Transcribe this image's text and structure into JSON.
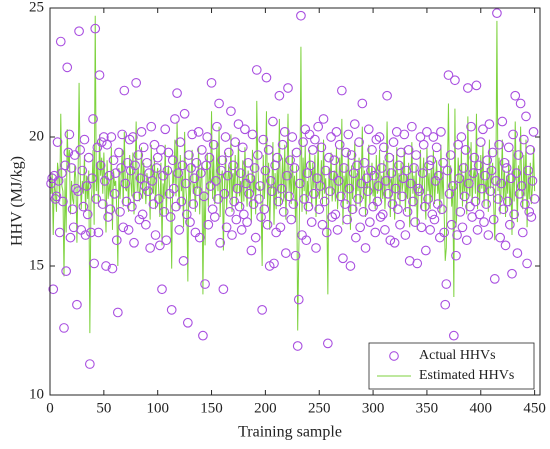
{
  "chart_data": {
    "type": "scatter-line",
    "xlabel": "Training sample",
    "ylabel": "HHV (MJ/kg)",
    "xlim": [
      0,
      455
    ],
    "ylim": [
      10,
      25
    ],
    "xticks": [
      0,
      50,
      100,
      150,
      200,
      250,
      300,
      350,
      400,
      450
    ],
    "yticks": [
      10,
      15,
      20,
      25
    ],
    "legend": "lower right",
    "x": [
      1,
      2,
      3,
      4,
      5,
      6,
      7,
      8,
      9,
      10,
      11,
      12,
      13,
      14,
      15,
      16,
      17,
      18,
      19,
      20,
      21,
      22,
      23,
      24,
      25,
      26,
      27,
      28,
      29,
      30,
      31,
      32,
      33,
      34,
      35,
      36,
      37,
      38,
      39,
      40,
      41,
      42,
      43,
      44,
      45,
      46,
      47,
      48,
      49,
      50,
      51,
      52,
      53,
      54,
      55,
      56,
      57,
      58,
      59,
      60,
      61,
      62,
      63,
      64,
      65,
      66,
      67,
      68,
      69,
      70,
      71,
      72,
      73,
      74,
      75,
      76,
      77,
      78,
      79,
      80,
      81,
      82,
      83,
      84,
      85,
      86,
      87,
      88,
      89,
      90,
      91,
      92,
      93,
      94,
      95,
      96,
      97,
      98,
      99,
      100,
      101,
      102,
      103,
      104,
      105,
      106,
      107,
      108,
      109,
      110,
      111,
      112,
      113,
      114,
      115,
      116,
      117,
      118,
      119,
      120,
      121,
      122,
      123,
      124,
      125,
      126,
      127,
      128,
      129,
      130,
      131,
      132,
      133,
      134,
      135,
      136,
      137,
      138,
      139,
      140,
      141,
      142,
      143,
      144,
      145,
      146,
      147,
      148,
      149,
      150,
      151,
      152,
      153,
      154,
      155,
      156,
      157,
      158,
      159,
      160,
      161,
      162,
      163,
      164,
      165,
      166,
      167,
      168,
      169,
      170,
      171,
      172,
      173,
      174,
      175,
      176,
      177,
      178,
      179,
      180,
      181,
      182,
      183,
      184,
      185,
      186,
      187,
      188,
      189,
      190,
      191,
      192,
      193,
      194,
      195,
      196,
      197,
      198,
      199,
      200,
      201,
      202,
      203,
      204,
      205,
      206,
      207,
      208,
      209,
      210,
      211,
      212,
      213,
      214,
      215,
      216,
      217,
      218,
      219,
      220,
      221,
      222,
      223,
      224,
      225,
      226,
      227,
      228,
      229,
      230,
      231,
      232,
      233,
      234,
      235,
      236,
      237,
      238,
      239,
      240,
      241,
      242,
      243,
      244,
      245,
      246,
      247,
      248,
      249,
      250,
      251,
      252,
      253,
      254,
      255,
      256,
      257,
      258,
      259,
      260,
      261,
      262,
      263,
      264,
      265,
      266,
      267,
      268,
      269,
      270,
      271,
      272,
      273,
      274,
      275,
      276,
      277,
      278,
      279,
      280,
      281,
      282,
      283,
      284,
      285,
      286,
      287,
      288,
      289,
      290,
      291,
      292,
      293,
      294,
      295,
      296,
      297,
      298,
      299,
      300,
      301,
      302,
      303,
      304,
      305,
      306,
      307,
      308,
      309,
      310,
      311,
      312,
      313,
      314,
      315,
      316,
      317,
      318,
      319,
      320,
      321,
      322,
      323,
      324,
      325,
      326,
      327,
      328,
      329,
      330,
      331,
      332,
      333,
      334,
      335,
      336,
      337,
      338,
      339,
      340,
      341,
      342,
      343,
      344,
      345,
      346,
      347,
      348,
      349,
      350,
      351,
      352,
      353,
      354,
      355,
      356,
      357,
      358,
      359,
      360,
      361,
      362,
      363,
      364,
      365,
      366,
      367,
      368,
      369,
      370,
      371,
      372,
      373,
      374,
      375,
      376,
      377,
      378,
      379,
      380,
      381,
      382,
      383,
      384,
      385,
      386,
      387,
      388,
      389,
      390,
      391,
      392,
      393,
      394,
      395,
      396,
      397,
      398,
      399,
      400,
      401,
      402,
      403,
      404,
      405,
      406,
      407,
      408,
      409,
      410,
      411,
      412,
      413,
      414,
      415,
      416,
      417,
      418,
      419,
      420,
      421,
      422,
      423,
      424,
      425,
      426,
      427,
      428,
      429,
      430,
      431,
      432,
      433,
      434,
      435,
      436,
      437,
      438,
      439,
      440,
      441,
      442,
      443,
      444,
      445,
      446,
      447,
      448,
      449,
      450
    ],
    "series": [
      {
        "name": "Actual HHVs",
        "color": "#a94fe0",
        "mode": "markers",
        "values": [
          18.2,
          18.4,
          14.1,
          18.5,
          17.6,
          17.7,
          19.8,
          18.3,
          16.3,
          23.7,
          18.6,
          17.5,
          12.6,
          18.9,
          14.8,
          22.7,
          19.4,
          20.1,
          16.1,
          18.8,
          17.2,
          16.5,
          19.3,
          18.0,
          13.5,
          17.9,
          24.1,
          19.5,
          16.4,
          18.7,
          17.3,
          19.9,
          16.2,
          18.1,
          17.0,
          19.2,
          11.2,
          16.3,
          18.4,
          20.7,
          15.1,
          24.2,
          17.6,
          19.6,
          16.3,
          22.4,
          18.9,
          19.8,
          17.4,
          20.0,
          18.3,
          15.0,
          19.7,
          16.9,
          18.5,
          17.2,
          20.0,
          14.9,
          19.1,
          17.8,
          18.6,
          16.0,
          13.2,
          19.4,
          17.1,
          18.8,
          20.1,
          16.5,
          21.8,
          18.2,
          17.5,
          19.0,
          16.4,
          19.9,
          18.7,
          17.3,
          20.0,
          15.9,
          18.9,
          22.1,
          17.7,
          19.3,
          16.8,
          18.4,
          20.2,
          17.0,
          19.6,
          18.1,
          16.6,
          19.0,
          17.9,
          18.6,
          15.7,
          20.4,
          18.3,
          17.4,
          19.7,
          16.2,
          18.8,
          19.2,
          17.6,
          15.8,
          19.5,
          14.1,
          18.5,
          17.1,
          20.3,
          16.0,
          18.7,
          19.4,
          17.8,
          16.9,
          13.3,
          19.1,
          18.0,
          20.7,
          17.3,
          21.7,
          18.6,
          16.4,
          19.8,
          17.5,
          18.9,
          15.2,
          20.9,
          18.2,
          17.0,
          12.8,
          19.3,
          16.7,
          18.8,
          20.1,
          17.4,
          18.4,
          16.3,
          19.0,
          17.9,
          20.2,
          16.1,
          18.6,
          19.5,
          12.3,
          17.7,
          14.3,
          18.9,
          20.0,
          16.6,
          19.2,
          18.1,
          22.1,
          17.2,
          19.7,
          16.9,
          18.3,
          20.4,
          17.6,
          21.3,
          15.9,
          18.7,
          19.1,
          14.1,
          17.8,
          20.0,
          16.5,
          18.5,
          19.4,
          17.1,
          21.0,
          16.2,
          18.9,
          17.5,
          19.8,
          16.8,
          18.0,
          20.5,
          17.3,
          18.6,
          16.4,
          19.6,
          17.0,
          20.3,
          18.2,
          16.7,
          19.0,
          17.8,
          18.4,
          15.6,
          20.1,
          17.4,
          18.8,
          16.1,
          22.6,
          19.3,
          17.6,
          18.1,
          16.9,
          13.3,
          19.9,
          17.2,
          18.7,
          22.3,
          16.6,
          19.5,
          15.0,
          18.3,
          17.9,
          20.6,
          15.1,
          18.9,
          16.3,
          19.2,
          17.5,
          21.6,
          16.5,
          18.0,
          19.7,
          17.1,
          20.2,
          15.5,
          18.5,
          21.9,
          17.7,
          19.1,
          16.8,
          20.0,
          17.4,
          18.8,
          15.4,
          19.4,
          11.9,
          13.7,
          18.2,
          24.7,
          16.2,
          19.8,
          17.6,
          20.3,
          16.0,
          18.6,
          17.3,
          20.1,
          18.9,
          16.7,
          19.5,
          17.8,
          19.9,
          15.7,
          18.4,
          20.4,
          17.2,
          18.1,
          19.6,
          16.6,
          20.7,
          17.5,
          18.7,
          16.3,
          12.0,
          19.2,
          17.9,
          20.0,
          16.9,
          18.5,
          19.1,
          17.0,
          20.2,
          16.4,
          18.3,
          19.7,
          17.7,
          21.8,
          15.3,
          18.8,
          17.4,
          19.4,
          16.8,
          20.1,
          18.0,
          15.0,
          19.3,
          17.2,
          18.6,
          20.5,
          16.1,
          18.9,
          17.6,
          19.8,
          16.5,
          18.2,
          21.3,
          17.1,
          19.0,
          15.7,
          18.4,
          17.9,
          20.3,
          16.7,
          18.7,
          19.5,
          17.3,
          18.5,
          16.3,
          19.9,
          17.5,
          18.1,
          20.0,
          16.9,
          18.8,
          17.0,
          19.6,
          16.4,
          18.3,
          21.6,
          17.8,
          19.2,
          16.0,
          18.6,
          17.4,
          19.8,
          15.9,
          18.0,
          20.2,
          17.2,
          18.9,
          16.6,
          19.4,
          17.7,
          18.4,
          20.1,
          16.2,
          18.7,
          17.1,
          19.5,
          15.2,
          18.2,
          20.4,
          17.5,
          18.8,
          16.7,
          19.3,
          15.1,
          18.0,
          17.9,
          20.0,
          16.5,
          18.6,
          19.7,
          17.3,
          15.6,
          20.2,
          17.6,
          18.9,
          16.4,
          19.1,
          17.0,
          20.0,
          16.8,
          18.3,
          19.6,
          17.4,
          18.5,
          16.1,
          20.2,
          17.2,
          19.0,
          16.3,
          13.5,
          14.3,
          18.7,
          22.4,
          17.8,
          19.3,
          16.6,
          18.1,
          12.3,
          22.2,
          15.4,
          16.2,
          19.7,
          18.4,
          17.1,
          20.0,
          16.5,
          18.8,
          17.7,
          19.5,
          16.0,
          21.9,
          18.2,
          17.3,
          20.4,
          16.9,
          18.6,
          19.2,
          17.5,
          22.0,
          16.4,
          18.9,
          17.0,
          19.8,
          18.0,
          20.3,
          16.7,
          18.5,
          17.4,
          19.1,
          16.2,
          20.5,
          17.9,
          18.7,
          19.4,
          16.8,
          14.5,
          18.3,
          24.8,
          17.6,
          19.7,
          16.1,
          18.2,
          20.6,
          17.2,
          19.0,
          15.8,
          18.8,
          17.5,
          19.6,
          16.6,
          18.4,
          14.7,
          20.1,
          17.0,
          21.6,
          18.6,
          15.5,
          19.3,
          17.8,
          21.3,
          18.1,
          16.3,
          19.9,
          17.4,
          20.8,
          15.1,
          18.7,
          17.1,
          19.5,
          16.9,
          18.3,
          20.2,
          17.6
        ]
      },
      {
        "name": "Estimated HHVs",
        "color": "#7dd23d",
        "mode": "line",
        "values": [
          17.8,
          18.6,
          16.2,
          18.3,
          17.9,
          17.1,
          19.0,
          18.6,
          17.5,
          20.9,
          18.1,
          17.9,
          14.6,
          18.4,
          16.3,
          20.3,
          18.8,
          19.5,
          17.0,
          18.3,
          17.6,
          17.4,
          18.9,
          18.4,
          15.9,
          18.2,
          22.1,
          18.7,
          17.2,
          18.3,
          17.8,
          19.3,
          17.1,
          18.5,
          17.6,
          18.7,
          12.4,
          17.4,
          18.0,
          19.5,
          16.6,
          24.7,
          17.9,
          19.0,
          17.3,
          20.1,
          18.5,
          19.2,
          17.8,
          19.4,
          18.0,
          16.3,
          19.1,
          17.6,
          18.2,
          17.7,
          19.6,
          16.4,
          18.7,
          18.1,
          18.3,
          17.2,
          15.0,
          18.8,
          17.6,
          18.4,
          19.5,
          17.3,
          20.2,
          18.0,
          17.9,
          18.6,
          17.1,
          19.3,
          18.4,
          17.7,
          19.4,
          17.0,
          18.5,
          20.6,
          17.9,
          18.8,
          17.5,
          18.1,
          19.6,
          17.6,
          19.0,
          18.3,
          17.4,
          18.6,
          18.2,
          18.3,
          16.8,
          19.7,
          18.0,
          17.8,
          19.2,
          17.2,
          18.5,
          18.8,
          17.9,
          16.9,
          19.0,
          15.8,
          18.2,
          17.6,
          19.7,
          17.0,
          18.4,
          18.9,
          18.0,
          17.5,
          14.9,
          18.7,
          18.2,
          19.9,
          17.7,
          20.6,
          18.3,
          17.2,
          19.3,
          17.9,
          18.5,
          16.5,
          20.2,
          18.1,
          17.5,
          14.4,
          18.9,
          17.3,
          18.4,
          19.5,
          17.8,
          18.2,
          17.1,
          18.6,
          18.0,
          19.6,
          17.0,
          18.3,
          19.0,
          13.9,
          17.9,
          15.8,
          18.6,
          19.4,
          17.3,
          18.8,
          18.2,
          21.0,
          17.6,
          19.2,
          17.4,
          18.1,
          19.8,
          17.9,
          20.4,
          16.9,
          18.4,
          18.7,
          15.6,
          18.0,
          19.4,
          17.2,
          18.3,
          18.9,
          17.6,
          20.1,
          17.1,
          18.6,
          17.9,
          19.3,
          17.4,
          18.1,
          19.8,
          17.7,
          18.3,
          17.2,
          19.1,
          17.5,
          19.6,
          18.2,
          17.3,
          18.7,
          18.0,
          18.2,
          16.7,
          19.5,
          17.8,
          18.5,
          17.0,
          21.4,
          18.9,
          17.9,
          18.1,
          17.4,
          15.0,
          19.3,
          17.6,
          18.4,
          21.0,
          17.3,
          19.0,
          16.4,
          18.1,
          18.0,
          19.8,
          16.6,
          18.6,
          17.2,
          18.8,
          17.8,
          20.7,
          17.3,
          18.1,
          19.2,
          17.5,
          19.7,
          16.8,
          18.3,
          20.9,
          17.9,
          18.7,
          17.4,
          19.5,
          17.8,
          18.5,
          16.7,
          18.9,
          12.5,
          15.5,
          18.0,
          23.5,
          17.1,
          19.2,
          17.9,
          19.7,
          17.0,
          18.3,
          17.7,
          19.5,
          18.6,
          17.3,
          19.0,
          18.0,
          19.3,
          16.9,
          18.2,
          19.8,
          17.6,
          18.0,
          19.1,
          17.4,
          19.9,
          17.8,
          18.4,
          17.3,
          13.9,
          18.8,
          18.0,
          19.4,
          17.5,
          18.3,
          18.7,
          17.5,
          19.6,
          17.2,
          18.1,
          19.2,
          17.9,
          20.7,
          16.6,
          18.5,
          17.8,
          18.9,
          17.4,
          19.5,
          18.1,
          16.4,
          18.9,
          17.6,
          18.4,
          19.8,
          17.1,
          18.6,
          17.9,
          19.2,
          17.3,
          18.1,
          20.4,
          17.6,
          18.7,
          16.9,
          18.2,
          18.0,
          19.7,
          17.4,
          18.4,
          19.0,
          17.7,
          18.3,
          17.2,
          19.3,
          17.8,
          18.0,
          19.5,
          17.5,
          18.5,
          17.6,
          19.1,
          17.2,
          18.2,
          20.6,
          18.0,
          18.8,
          16.9,
          18.4,
          17.8,
          19.3,
          16.8,
          18.1,
          19.6,
          17.6,
          18.6,
          17.3,
          19.0,
          17.9,
          18.3,
          19.6,
          17.1,
          18.5,
          17.6,
          19.0,
          16.5,
          18.1,
          19.8,
          17.8,
          18.5,
          17.3,
          18.9,
          16.4,
          18.0,
          18.0,
          19.5,
          17.2,
          18.4,
          19.2,
          17.7,
          16.8,
          19.6,
          17.9,
          18.6,
          17.2,
          18.8,
          17.5,
          19.5,
          17.4,
          18.2,
          19.1,
          17.8,
          18.3,
          17.0,
          19.7,
          17.6,
          18.7,
          17.1,
          15.2,
          15.7,
          18.5,
          21.3,
          18.0,
          18.9,
          17.3,
          18.1,
          13.8,
          21.1,
          16.5,
          17.2,
          19.2,
          18.3,
          17.6,
          19.5,
          17.3,
          18.5,
          17.9,
          19.0,
          17.0,
          20.8,
          18.1,
          17.7,
          19.8,
          17.4,
          18.4,
          18.8,
          17.8,
          20.9,
          17.2,
          18.6,
          17.5,
          19.3,
          18.0,
          19.7,
          17.3,
          18.3,
          17.8,
          18.8,
          17.1,
          19.9,
          18.0,
          18.5,
          19.0,
          17.4,
          16.0,
          18.2,
          24.5,
          17.9,
          19.2,
          17.0,
          18.1,
          19.9,
          17.6,
          18.7,
          16.9,
          18.5,
          17.8,
          19.1,
          17.3,
          18.2,
          16.2,
          19.5,
          17.5,
          20.6,
          18.3,
          16.7,
          18.9,
          17.9,
          20.4,
          18.0,
          17.2,
          19.3,
          17.7,
          19.9,
          16.5,
          18.5,
          17.6,
          19.0,
          17.4,
          18.1,
          19.6,
          17.9
        ]
      }
    ]
  }
}
